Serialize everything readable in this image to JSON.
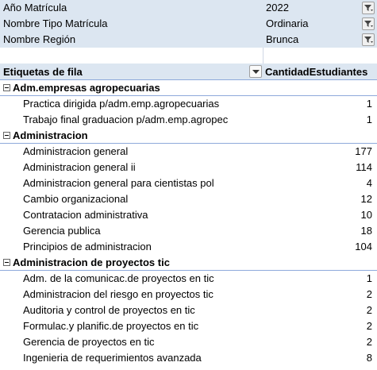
{
  "filters": [
    {
      "label": "Año Matrícula",
      "value": "2022"
    },
    {
      "label": "Nombre Tipo Matrícula",
      "value": "Ordinaria"
    },
    {
      "label": "Nombre Región",
      "value": "Brunca"
    }
  ],
  "header": {
    "row_labels": "Etiquetas de fila",
    "value_field": "CantidadEstudiantes"
  },
  "groups": [
    {
      "name": "Adm.empresas agropecuarias",
      "items": [
        {
          "label": "Practica dirigida p/adm.emp.agropecuarias",
          "value": "1"
        },
        {
          "label": "Trabajo final graduacion p/adm.emp.agropec",
          "value": "1"
        }
      ]
    },
    {
      "name": "Administracion",
      "items": [
        {
          "label": "Administracion general",
          "value": "177"
        },
        {
          "label": "Administracion general ii",
          "value": "114"
        },
        {
          "label": "Administracion general para cientistas pol",
          "value": "4"
        },
        {
          "label": "Cambio organizacional",
          "value": "12"
        },
        {
          "label": "Contratacion administrativa",
          "value": "10"
        },
        {
          "label": "Gerencia publica",
          "value": "18"
        },
        {
          "label": "Principios de administracion",
          "value": "104"
        }
      ]
    },
    {
      "name": "Administracion de proyectos tic",
      "items": [
        {
          "label": "Adm. de la comunicac.de proyectos en tic",
          "value": "1"
        },
        {
          "label": "Administracion del riesgo en proyectos tic",
          "value": "2"
        },
        {
          "label": "Auditoria y control de proyectos en tic",
          "value": "2"
        },
        {
          "label": "Formulac.y planific.de proyectos en tic",
          "value": "2"
        },
        {
          "label": "Gerencia de proyectos en tic",
          "value": "2"
        },
        {
          "label": "Ingenieria de requerimientos avanzada",
          "value": "8"
        }
      ]
    }
  ]
}
